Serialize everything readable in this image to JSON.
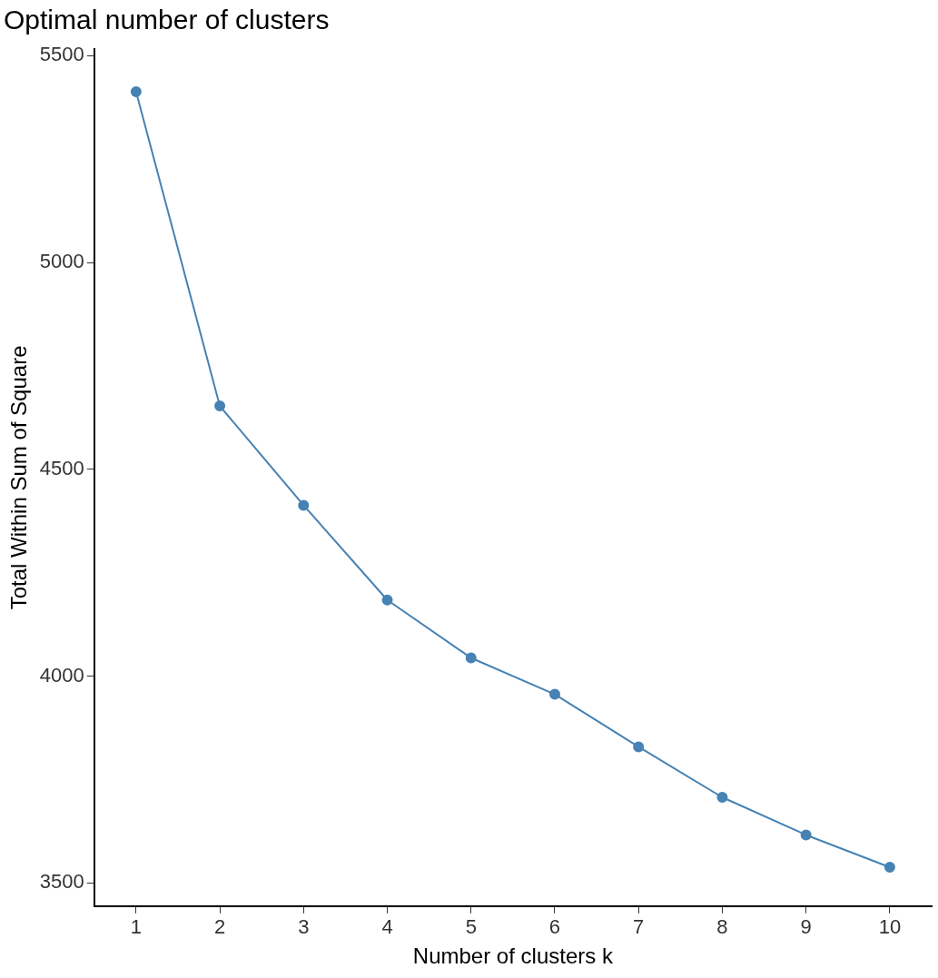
{
  "chart_data": {
    "type": "line",
    "title": "Optimal number of clusters",
    "xlabel": "Number of clusters k",
    "ylabel": "Total Within Sum of Square",
    "categories": [
      "1",
      "2",
      "3",
      "4",
      "5",
      "6",
      "7",
      "8",
      "9",
      "10"
    ],
    "series": [
      {
        "color": "#4682b4",
        "values": [
          5413,
          4653,
          4413,
          4184,
          4044,
          3956,
          3829,
          3707,
          3616,
          3538
        ]
      }
    ],
    "ylim": [
      3444,
      5516
    ],
    "yticks": [
      3500,
      4000,
      4500,
      5000,
      5500
    ],
    "grid": false,
    "legend": false,
    "marker": "circle",
    "line_style": "solid"
  }
}
